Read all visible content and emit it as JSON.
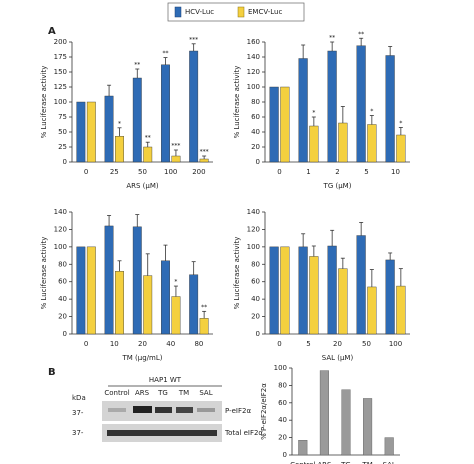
{
  "panel_labels": [
    "A",
    "B"
  ],
  "chart_data": [
    {
      "type": "bar",
      "ylabel": "% Luciferase activity",
      "xlabel": "ARS (μM)",
      "categories": [
        "0",
        "25",
        "50",
        "100",
        "200"
      ],
      "ylim": [
        0,
        200
      ],
      "yticks": [
        0,
        25,
        50,
        75,
        100,
        125,
        150,
        175,
        200
      ],
      "series": [
        {
          "name": "HCV-Luc",
          "color": "#2e6bb5",
          "values": [
            100,
            110,
            140,
            162,
            185
          ],
          "errors": [
            null,
            18,
            15,
            12,
            12
          ],
          "stars": [
            null,
            null,
            "**",
            "**",
            "***"
          ]
        },
        {
          "name": "EMCV-Luc",
          "color": "#f4d03f",
          "values": [
            100,
            43,
            25,
            10,
            5
          ],
          "errors": [
            null,
            14,
            8,
            10,
            5
          ],
          "stars": [
            null,
            "*",
            "**",
            "***",
            "***"
          ]
        }
      ]
    },
    {
      "type": "bar",
      "ylabel": "% Luciferase activity",
      "xlabel": "TG (μM)",
      "categories": [
        "0",
        "1",
        "2",
        "5",
        "10"
      ],
      "ylim": [
        0,
        160
      ],
      "yticks": [
        0,
        20,
        40,
        60,
        80,
        100,
        120,
        140,
        160
      ],
      "series": [
        {
          "name": "HCV-Luc",
          "color": "#2e6bb5",
          "values": [
            100,
            138,
            148,
            155,
            142
          ],
          "errors": [
            null,
            18,
            12,
            10,
            12
          ],
          "stars": [
            null,
            null,
            "**",
            "**",
            null
          ]
        },
        {
          "name": "EMCV-Luc",
          "color": "#f4d03f",
          "values": [
            100,
            48,
            52,
            50,
            36
          ],
          "errors": [
            null,
            12,
            22,
            12,
            10
          ],
          "stars": [
            null,
            "*",
            null,
            "*",
            "*"
          ]
        }
      ]
    },
    {
      "type": "bar",
      "ylabel": "% Luciferase activity",
      "xlabel": "TM (μg/mL)",
      "categories": [
        "0",
        "10",
        "20",
        "40",
        "80"
      ],
      "ylim": [
        0,
        140
      ],
      "yticks": [
        0,
        20,
        40,
        60,
        80,
        100,
        120,
        140
      ],
      "series": [
        {
          "name": "HCV-Luc",
          "color": "#2e6bb5",
          "values": [
            100,
            124,
            123,
            84,
            68
          ],
          "errors": [
            null,
            12,
            14,
            18,
            15
          ],
          "stars": [
            null,
            null,
            null,
            null,
            null
          ]
        },
        {
          "name": "EMCV-Luc",
          "color": "#f4d03f",
          "values": [
            100,
            72,
            67,
            43,
            18
          ],
          "errors": [
            null,
            12,
            25,
            12,
            8
          ],
          "stars": [
            null,
            null,
            null,
            "*",
            "**"
          ]
        }
      ]
    },
    {
      "type": "bar",
      "ylabel": "% Luciferase activity",
      "xlabel": "SAL (μM)",
      "categories": [
        "0",
        "5",
        "20",
        "50",
        "100"
      ],
      "ylim": [
        0,
        140
      ],
      "yticks": [
        0,
        20,
        40,
        60,
        80,
        100,
        120,
        140
      ],
      "series": [
        {
          "name": "HCV-Luc",
          "color": "#2e6bb5",
          "values": [
            100,
            100,
            101,
            113,
            85
          ],
          "errors": [
            null,
            15,
            18,
            15,
            8
          ],
          "stars": [
            null,
            null,
            null,
            null,
            null
          ]
        },
        {
          "name": "EMCV-Luc",
          "color": "#f4d03f",
          "values": [
            100,
            89,
            75,
            54,
            55
          ],
          "errors": [
            null,
            12,
            12,
            20,
            20
          ],
          "stars": [
            null,
            null,
            null,
            null,
            null
          ]
        }
      ]
    },
    {
      "type": "bar",
      "ylabel": "% P-eIF2α/eIF2α",
      "color": "#9a9a9a",
      "categories": [
        "Control",
        "ARS",
        "TG",
        "TM",
        "SAL"
      ],
      "ylim": [
        0,
        100
      ],
      "yticks": [
        0,
        20,
        40,
        60,
        80,
        100
      ],
      "values": [
        17,
        97,
        75,
        65,
        20
      ]
    }
  ],
  "blot": {
    "title": "HAP1 WT",
    "kda": "kDa",
    "lanes": [
      "Control",
      "ARS",
      "TG",
      "TM",
      "SAL"
    ],
    "markers": [
      "37-",
      "37-"
    ],
    "rows": [
      "P-eIF2α",
      "Total eIF2α"
    ]
  }
}
